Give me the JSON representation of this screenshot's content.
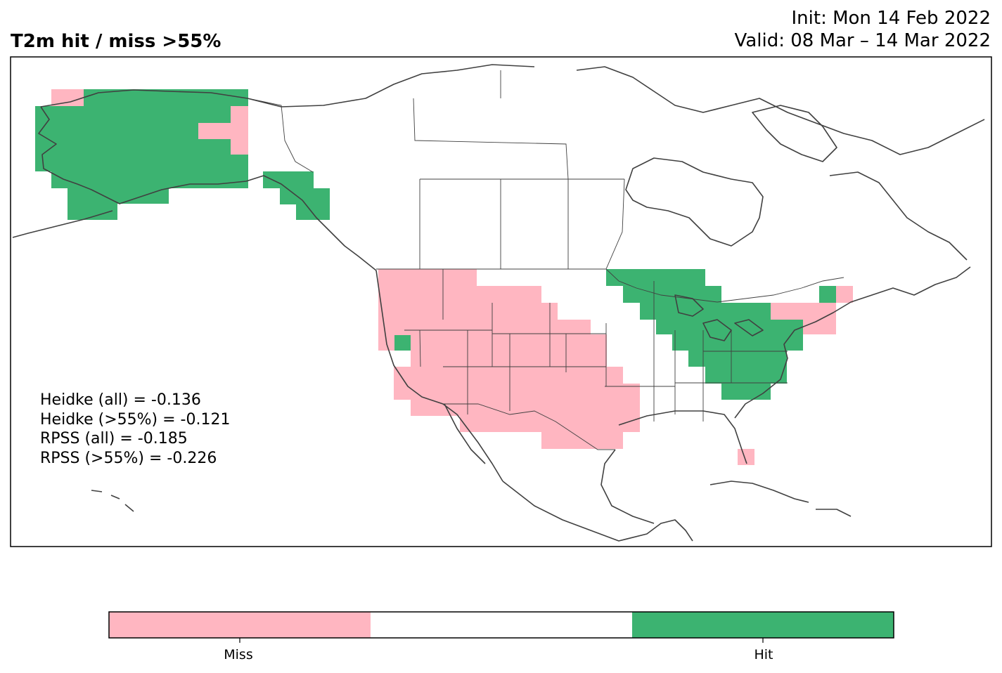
{
  "title": "T2m hit / miss  >55%",
  "init_text": "Init: Mon 14 Feb 2022",
  "valid_text": "Valid: 08 Mar – 14 Mar 2022",
  "stats": [
    "Heidke (all) = -0.136",
    "Heidke (>55%) = -0.121",
    "RPSS (all) = -0.185",
    "RPSS (>55%) = -0.226"
  ],
  "colors": {
    "miss": "#ffb6c1",
    "neutral": "#ffffff",
    "hit": "#3cb371",
    "coast": "#404040"
  },
  "colorbar": {
    "segments": [
      "miss",
      "neutral",
      "hit"
    ],
    "labels": [
      "Miss",
      "Hit"
    ]
  }
}
